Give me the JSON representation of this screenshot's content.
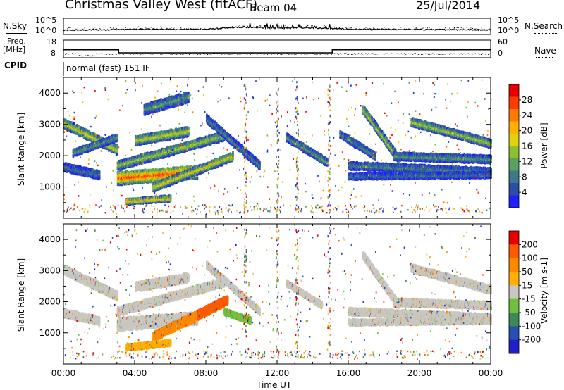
{
  "header": {
    "station": "Christmas Valley West (fitACF)",
    "beam": "Beam 04",
    "date": "25/Jul/2014"
  },
  "left_labels": {
    "nsky": "N.Sky",
    "freq": "Freq.",
    "freq_unit": "[MHz]",
    "cpid": "CPID"
  },
  "right_labels": {
    "nsearch": "N.Search",
    "nave": "Nave"
  },
  "cpid_value": "normal (fast) 151 IF",
  "colors": {
    "frame": "#000000",
    "background": "#ffffff"
  },
  "chart_data": [
    {
      "type": "line",
      "name_panel": "noise",
      "left_ticks": [
        "10^5",
        "10^0"
      ],
      "right_ticks": [
        "10^5",
        "10^0"
      ],
      "x_range": [
        0,
        24
      ],
      "series": [
        {
          "name": "N.Sky",
          "style": "solid"
        },
        {
          "name": "N.Search",
          "style": "dotted"
        }
      ],
      "approx_level": [
        [
          0,
          0.25
        ],
        [
          4,
          0.35
        ],
        [
          8,
          0.35
        ],
        [
          10,
          0.55
        ],
        [
          12,
          0.45
        ],
        [
          14,
          0.5
        ],
        [
          16,
          0.35
        ],
        [
          24,
          0.3
        ]
      ]
    },
    {
      "type": "line",
      "name_panel": "frequency",
      "left_ticks": [
        "18",
        "8"
      ],
      "right_ticks": [
        "60",
        "0"
      ],
      "x_range": [
        0,
        24
      ],
      "freq_mhz": [
        [
          0,
          12.5
        ],
        [
          3.1,
          12.5
        ],
        [
          3.1,
          10.8
        ],
        [
          15.1,
          10.8
        ],
        [
          15.1,
          12.5
        ],
        [
          24,
          12.5
        ]
      ],
      "nave": [
        [
          0,
          14
        ],
        [
          24,
          14
        ]
      ]
    },
    {
      "type": "heatmap",
      "name_panel": "power",
      "ylabel": "Slant Range [km]",
      "yticks": [
        1000,
        2000,
        3000,
        4000
      ],
      "ylim": [
        0,
        4500
      ],
      "colorbar_label": "Power [dB]",
      "colorbar_ticks": [
        4,
        8,
        12,
        16,
        20,
        24,
        28
      ],
      "colorbar_colors": [
        "#1f1fff",
        "#2c4ea8",
        "#3a7a8a",
        "#5aa060",
        "#8cc030",
        "#e0d010",
        "#ffb000",
        "#ff7a00",
        "#ff3a00",
        "#e80000"
      ],
      "echo_bands": [
        {
          "t0": 0.0,
          "t1": 3.0,
          "r0": 3050,
          "r1": 2200,
          "w": 260,
          "level": 0.55
        },
        {
          "t0": 0.0,
          "t1": 2.0,
          "r0": 1650,
          "r1": 1400,
          "w": 220,
          "level": 0.25
        },
        {
          "t0": 0.5,
          "t1": 3.0,
          "r0": 2100,
          "r1": 2600,
          "w": 180,
          "level": 0.35
        },
        {
          "t0": 3.0,
          "t1": 7.5,
          "r0": 1300,
          "r1": 1500,
          "w": 380,
          "level": 0.85
        },
        {
          "t0": 3.0,
          "t1": 9.0,
          "r0": 1700,
          "r1": 2650,
          "w": 240,
          "level": 0.5
        },
        {
          "t0": 4.0,
          "t1": 7.0,
          "r0": 2500,
          "r1": 2800,
          "w": 260,
          "level": 0.55
        },
        {
          "t0": 5.0,
          "t1": 9.5,
          "r0": 1000,
          "r1": 2000,
          "w": 220,
          "level": 0.6
        },
        {
          "t0": 3.5,
          "t1": 6.0,
          "r0": 550,
          "r1": 650,
          "w": 140,
          "level": 0.7
        },
        {
          "t0": 4.5,
          "t1": 7.0,
          "r0": 3500,
          "r1": 3900,
          "w": 300,
          "level": 0.35
        },
        {
          "t0": 8.0,
          "t1": 11.0,
          "r0": 3200,
          "r1": 1700,
          "w": 200,
          "level": 0.3
        },
        {
          "t0": 12.5,
          "t1": 14.8,
          "r0": 2600,
          "r1": 1800,
          "w": 200,
          "level": 0.35
        },
        {
          "t0": 16.8,
          "t1": 18.8,
          "r0": 3500,
          "r1": 1900,
          "w": 240,
          "level": 0.5
        },
        {
          "t0": 18.5,
          "t1": 24.0,
          "r0": 2000,
          "r1": 1900,
          "w": 200,
          "level": 0.35
        },
        {
          "t0": 16.0,
          "t1": 24.0,
          "r0": 1700,
          "r1": 1500,
          "w": 200,
          "level": 0.3
        },
        {
          "t0": 16.0,
          "t1": 24.0,
          "r0": 1350,
          "r1": 1400,
          "w": 140,
          "level": 0.25
        },
        {
          "t0": 19.5,
          "t1": 24.0,
          "r0": 3100,
          "r1": 2400,
          "w": 220,
          "level": 0.5
        },
        {
          "t0": 15.5,
          "t1": 17.5,
          "r0": 2700,
          "r1": 2000,
          "w": 180,
          "level": 0.3
        }
      ]
    },
    {
      "type": "heatmap",
      "name_panel": "velocity",
      "ylabel": "Slant Range [km]",
      "xlabel": "Time UT",
      "yticks": [
        1000,
        2000,
        3000,
        4000
      ],
      "ylim": [
        0,
        4500
      ],
      "xticks": [
        "00:00",
        "04:00",
        "08:00",
        "12:00",
        "16:00",
        "20:00",
        "00:00"
      ],
      "xlim": [
        0,
        24
      ],
      "colorbar_label": "Velocity [m s-1]",
      "colorbar_ticks": [
        200,
        100,
        50,
        15,
        -15,
        -50,
        -100,
        -200
      ],
      "colorbar_colors": [
        "#2020c8",
        "#2850b0",
        "#3a8a5a",
        "#70c040",
        "#c8c8c0",
        "#ffb000",
        "#ff8a00",
        "#ff5a00",
        "#e80000"
      ],
      "echo_bands": [
        {
          "t0": 0.0,
          "t1": 3.0,
          "r0": 3050,
          "r1": 2200,
          "w": 260,
          "c": "#c8c8c0"
        },
        {
          "t0": 0.0,
          "t1": 2.0,
          "r0": 1650,
          "r1": 1400,
          "w": 220,
          "c": "#c8c8c0"
        },
        {
          "t0": 3.0,
          "t1": 7.5,
          "r0": 1300,
          "r1": 1500,
          "w": 380,
          "c": "#c8c8c0"
        },
        {
          "t0": 3.0,
          "t1": 9.0,
          "r0": 1700,
          "r1": 2650,
          "w": 240,
          "c": "#c8c8c0"
        },
        {
          "t0": 4.0,
          "t1": 7.0,
          "r0": 2500,
          "r1": 2800,
          "w": 260,
          "c": "#c8c8c0"
        },
        {
          "t0": 5.0,
          "t1": 9.0,
          "r0": 900,
          "r1": 2000,
          "w": 260,
          "c": "#ff8a00"
        },
        {
          "t0": 7.5,
          "t1": 9.2,
          "r0": 1600,
          "r1": 2100,
          "w": 240,
          "c": "#ff5a00"
        },
        {
          "t0": 9.0,
          "t1": 10.5,
          "r0": 1700,
          "r1": 1400,
          "w": 160,
          "c": "#70c040"
        },
        {
          "t0": 3.5,
          "t1": 6.0,
          "r0": 550,
          "r1": 700,
          "w": 150,
          "c": "#ffb000"
        },
        {
          "t0": 8.0,
          "t1": 11.0,
          "r0": 3200,
          "r1": 1700,
          "w": 180,
          "c": "#c8c8c0"
        },
        {
          "t0": 12.5,
          "t1": 14.5,
          "r0": 2600,
          "r1": 1900,
          "w": 160,
          "c": "#c8c8c0"
        },
        {
          "t0": 16.8,
          "t1": 18.8,
          "r0": 3500,
          "r1": 1900,
          "w": 220,
          "c": "#c8c8c0"
        },
        {
          "t0": 18.5,
          "t1": 24.0,
          "r0": 2000,
          "r1": 1900,
          "w": 200,
          "c": "#c8c8c0"
        },
        {
          "t0": 16.0,
          "t1": 24.0,
          "r0": 1700,
          "r1": 1500,
          "w": 200,
          "c": "#c8c8c0"
        },
        {
          "t0": 16.0,
          "t1": 24.0,
          "r0": 1350,
          "r1": 1400,
          "w": 140,
          "c": "#c8c8c0"
        },
        {
          "t0": 19.5,
          "t1": 24.0,
          "r0": 3100,
          "r1": 2400,
          "w": 220,
          "c": "#c8c8c0"
        }
      ]
    }
  ]
}
